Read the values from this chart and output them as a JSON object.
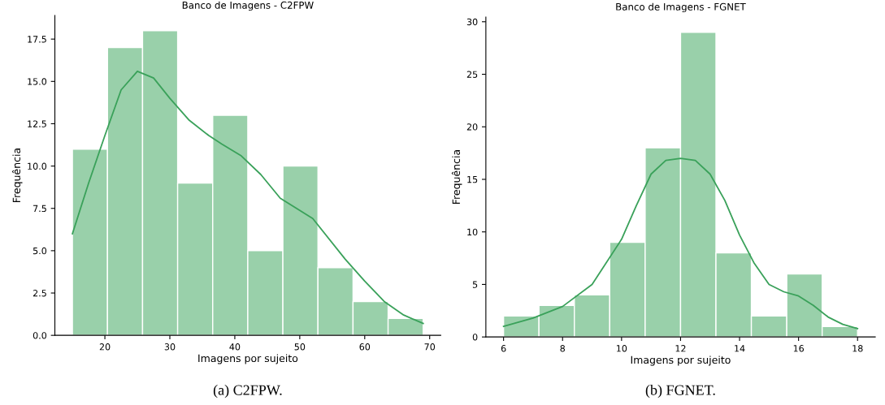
{
  "chart_data": [
    {
      "type": "histogram",
      "title": "Banco de Imagens - C2FPW",
      "xlabel": "Imagens por sujeito",
      "ylabel": "Frequência",
      "color": "#99d0aa",
      "bins": [
        15,
        20.4,
        25.8,
        31.2,
        36.6,
        42,
        47.4,
        52.8,
        58.2,
        63.6,
        69
      ],
      "values": [
        11,
        17,
        18,
        9,
        13,
        5,
        10,
        4,
        2,
        1
      ],
      "series": [
        {
          "type": "line",
          "color": "#3aa15a",
          "x": [
            15,
            17.5,
            20,
            22.5,
            25,
            27.5,
            30,
            33,
            36,
            38,
            41,
            44,
            47,
            52,
            57,
            60,
            63,
            66,
            69
          ],
          "values": [
            6.0,
            9.0,
            11.8,
            14.5,
            15.6,
            15.2,
            14.0,
            12.7,
            11.8,
            11.3,
            10.6,
            9.5,
            8.1,
            6.9,
            4.5,
            3.2,
            2.0,
            1.2,
            0.7
          ]
        }
      ],
      "xlim": [
        12.3,
        71.7
      ],
      "xticks": [
        20,
        30,
        40,
        50,
        60,
        70
      ],
      "ylim": [
        0,
        18.9
      ],
      "yticks": [
        {
          "value": 0,
          "label": "0.0"
        },
        {
          "value": 2.5,
          "label": "2.5"
        },
        {
          "value": 5,
          "label": "5.0"
        },
        {
          "value": 7.5,
          "label": "7.5"
        },
        {
          "value": 10,
          "label": "10.0"
        },
        {
          "value": 12.5,
          "label": "12.5"
        },
        {
          "value": 15,
          "label": "15.0"
        },
        {
          "value": 17.5,
          "label": "17.5"
        }
      ],
      "grid": false,
      "annotations": [
        "(a) C2FPW."
      ]
    },
    {
      "type": "histogram",
      "title": "Banco de Imagens - FGNET",
      "xlabel": "Imagens por sujeito",
      "ylabel": "Frequência",
      "color": "#99d0aa",
      "bins": [
        6,
        7.2,
        8.4,
        9.6,
        10.8,
        12,
        13.2,
        14.4,
        15.6,
        16.8,
        18
      ],
      "values": [
        2,
        3,
        4,
        9,
        18,
        29,
        8,
        2,
        6,
        1
      ],
      "series": [
        {
          "type": "line",
          "color": "#3aa15a",
          "x": [
            6,
            7,
            8,
            9,
            10,
            10.5,
            11,
            11.5,
            12,
            12.5,
            13,
            13.5,
            14,
            14.5,
            15,
            15.5,
            16,
            16.5,
            17,
            17.5,
            18
          ],
          "values": [
            1.0,
            1.8,
            2.9,
            5.0,
            9.3,
            12.5,
            15.5,
            16.8,
            17.0,
            16.8,
            15.5,
            13.0,
            9.7,
            7.0,
            5.0,
            4.3,
            3.9,
            3.0,
            1.9,
            1.2,
            0.8
          ]
        }
      ],
      "xlim": [
        5.4,
        18.6
      ],
      "xticks": [
        6,
        8,
        10,
        12,
        14,
        16,
        18
      ],
      "ylim": [
        0,
        30.45
      ],
      "yticks": [
        0,
        5,
        10,
        15,
        20,
        25,
        30
      ],
      "grid": false,
      "annotations": [
        "(b) FGNET."
      ]
    }
  ]
}
